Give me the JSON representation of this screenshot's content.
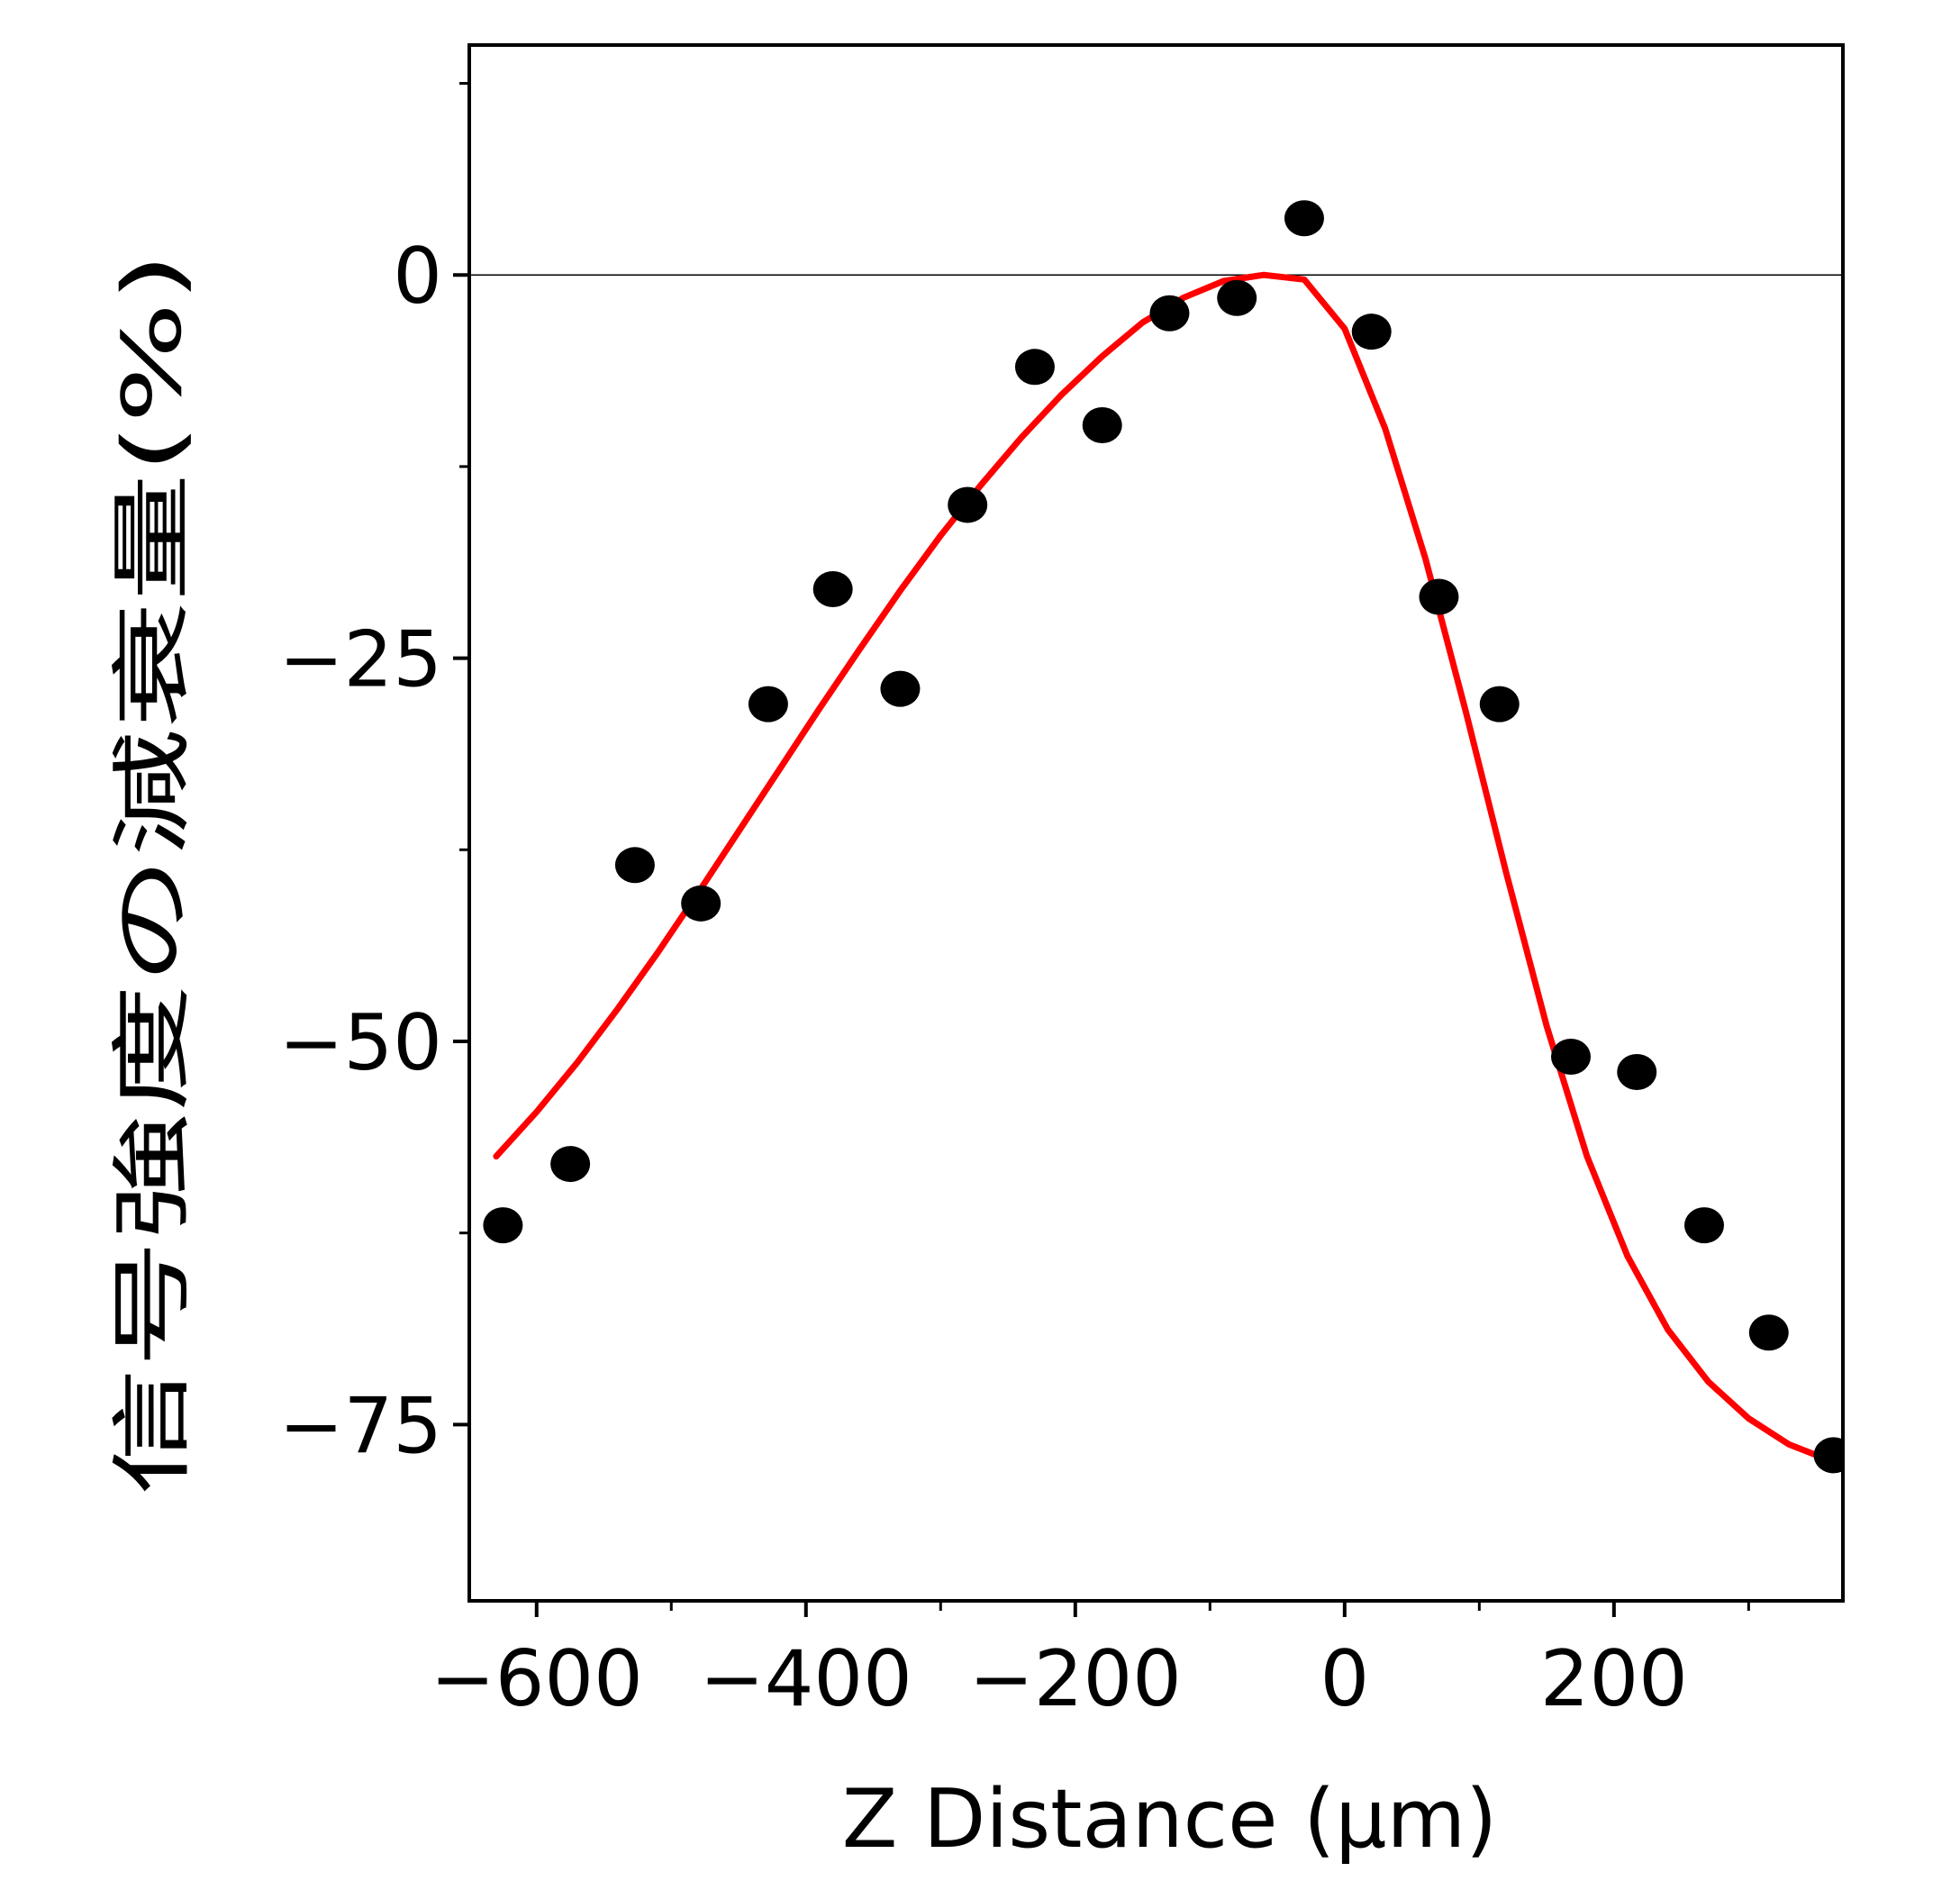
{
  "chart_data": {
    "type": "scatter",
    "xlabel": "Z Distance (μm)",
    "ylabel": "信号強度の減衰量(%)",
    "xlim": [
      -650,
      370
    ],
    "ylim": [
      -86.5,
      15
    ],
    "x_ticks": [
      -600,
      -400,
      -200,
      0,
      200
    ],
    "x_tick_labels": [
      "−600",
      "−400",
      "−200",
      "0",
      "200"
    ],
    "x_minor_ticks": [
      -500,
      -300,
      -100,
      100,
      300
    ],
    "y_ticks": [
      0,
      -25,
      -50,
      -75
    ],
    "y_tick_labels": [
      "0",
      "−25",
      "−50",
      "−75"
    ],
    "y_minor_ticks": [
      12.5,
      -12.5,
      -37.5,
      -62.5
    ],
    "reference_line_y": 0,
    "grid": false,
    "series": [
      {
        "kind": "points",
        "color": "#000000",
        "x": [
          -625,
          -575,
          -527,
          -478,
          -428,
          -380,
          -330,
          -280,
          -230,
          -180,
          -130,
          -80,
          -30,
          20,
          70,
          115,
          168,
          217,
          267,
          315,
          363
        ],
        "y": [
          -62,
          -58,
          -38.5,
          -41,
          -28,
          -20.5,
          -27,
          -15,
          -6,
          -9.8,
          -2.5,
          -1.5,
          3.7,
          -3.7,
          -21,
          -28,
          -51,
          -52,
          -62,
          -69,
          -77
        ]
      },
      {
        "kind": "fit",
        "color": "#ff0000",
        "x": [
          -630,
          -600,
          -570,
          -540,
          -510,
          -480,
          -450,
          -420,
          -390,
          -360,
          -330,
          -300,
          -270,
          -240,
          -210,
          -180,
          -150,
          -120,
          -90,
          -60,
          -30,
          0,
          30,
          60,
          90,
          120,
          150,
          180,
          210,
          240,
          270,
          300,
          330,
          365
        ],
        "y": [
          -57.5,
          -54.6,
          -51.4,
          -47.9,
          -44.2,
          -40.3,
          -36.3,
          -32.3,
          -28.3,
          -24.4,
          -20.6,
          -17.0,
          -13.7,
          -10.6,
          -7.8,
          -5.3,
          -3.1,
          -1.5,
          -0.4,
          0.0,
          -0.3,
          -3.5,
          -10.0,
          -18.5,
          -28.5,
          -39.0,
          -49.0,
          -57.5,
          -64.0,
          -68.8,
          -72.2,
          -74.6,
          -76.3,
          -77.5
        ]
      }
    ]
  }
}
